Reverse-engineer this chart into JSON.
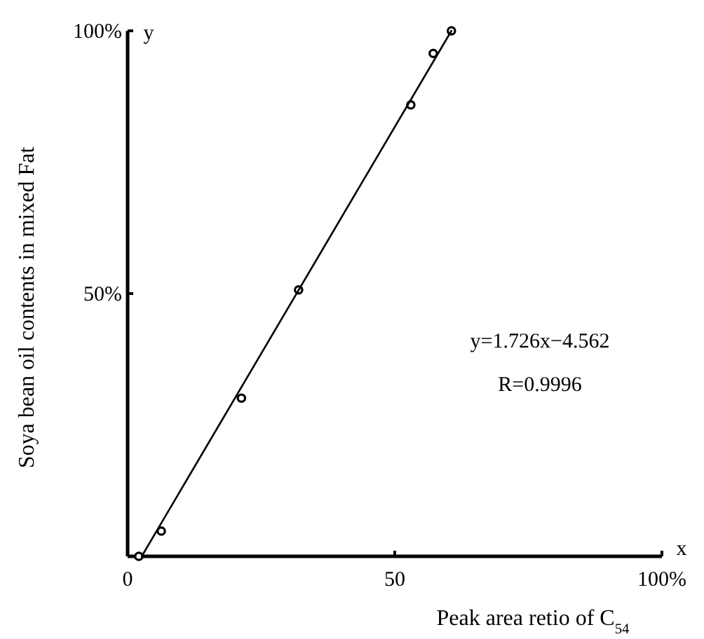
{
  "chart_data": {
    "type": "scatter",
    "xlabel": "Peak area retio of C$_{54}$",
    "ylabel": "Soya bean oil contents in mixed Fat",
    "xlim": [
      0,
      100
    ],
    "ylim": [
      0,
      100
    ],
    "xticks": [
      0,
      50,
      {
        "value": 100,
        "label": "100%"
      }
    ],
    "yticks": [
      {
        "value": 50,
        "label": "50%"
      },
      {
        "value": 100,
        "label": "100%"
      }
    ],
    "annotations": [
      "y=1.726x−4.562",
      "R=0.9996",
      "x",
      "y"
    ],
    "grid": false,
    "series": [
      {
        "color": "#000000",
        "marker": "circle",
        "x": [
          2.1,
          6.3,
          21.3,
          32.0,
          53.0,
          57.2,
          60.6
        ],
        "values": [
          0,
          4.8,
          30.1,
          50.7,
          85.9,
          95.7,
          100
        ]
      },
      {
        "type": "line",
        "color": "#000000",
        "line_style": "solid",
        "x": [
          2.64,
          60.6
        ],
        "values": [
          0,
          100
        ]
      }
    ]
  }
}
